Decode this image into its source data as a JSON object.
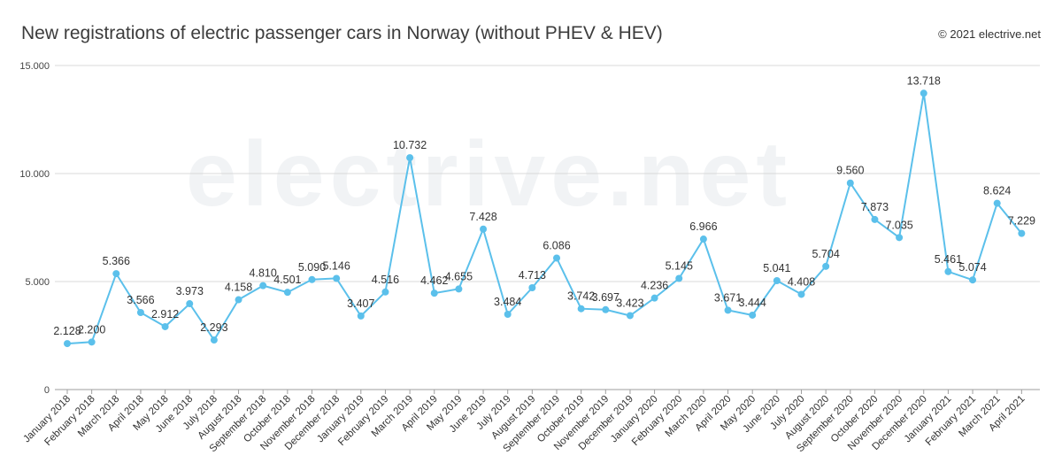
{
  "header": {
    "title": "New registrations of electric passenger cars in Norway (without PHEV & HEV)",
    "copyright": "© 2021 electrive.net",
    "watermark": "electrive.net"
  },
  "colors": {
    "line": "#5bc0eb",
    "grid": "#d9d9d9",
    "text": "#333333"
  },
  "chart_data": {
    "type": "line",
    "title": "New registrations of electric passenger cars in Norway (without PHEV & HEV)",
    "xlabel": "",
    "ylabel": "",
    "ylim": [
      0,
      15000
    ],
    "yticks": [
      0,
      5000,
      10000,
      15000
    ],
    "ytick_labels": [
      "0",
      "5.000",
      "10.000",
      "15.000"
    ],
    "grid": true,
    "legend": "none",
    "categories": [
      "January 2018",
      "February 2018",
      "March 2018",
      "April 2018",
      "May 2018",
      "June 2018",
      "July 2018",
      "August 2018",
      "September 2018",
      "October 2018",
      "November 2018",
      "December 2018",
      "January 2019",
      "February 2019",
      "March 2019",
      "April 2019",
      "May 2019",
      "June 2019",
      "July 2019",
      "August 2019",
      "September 2019",
      "October 2019",
      "November 2019",
      "December 2019",
      "January 2020",
      "February 2020",
      "March 2020",
      "April 2020",
      "May 2020",
      "June 2020",
      "July 2020",
      "August 2020",
      "September 2020",
      "October 2020",
      "November 2020",
      "December 2020",
      "January 2021",
      "February 2021",
      "March 2021",
      "April 2021"
    ],
    "values": [
      2128,
      2200,
      5366,
      3566,
      2912,
      3973,
      2293,
      4158,
      4810,
      4501,
      5090,
      5146,
      3407,
      4516,
      10732,
      4462,
      4655,
      7428,
      3484,
      4713,
      6086,
      3742,
      3697,
      3423,
      4236,
      5145,
      6966,
      3671,
      3444,
      5041,
      4408,
      5704,
      9560,
      7873,
      7035,
      13718,
      5461,
      5074,
      8624,
      7229
    ],
    "data_labels": [
      "2.128",
      "2.200",
      "5.366",
      "3.566",
      "2.912",
      "3.973",
      "2.293",
      "4.158",
      "4.810",
      "4.501",
      "5.090",
      "5.146",
      "3.407",
      "4.516",
      "10.732",
      "4.462",
      "4.655",
      "7.428",
      "3.484",
      "4.713",
      "6.086",
      "3.742",
      "3.697",
      "3.423",
      "4.236",
      "5.145",
      "6.966",
      "3.671",
      "3.444",
      "5.041",
      "4.408",
      "5.704",
      "9.560",
      "7.873",
      "7.035",
      "13.718",
      "5.461",
      "5.074",
      "8.624",
      "7.229"
    ]
  }
}
